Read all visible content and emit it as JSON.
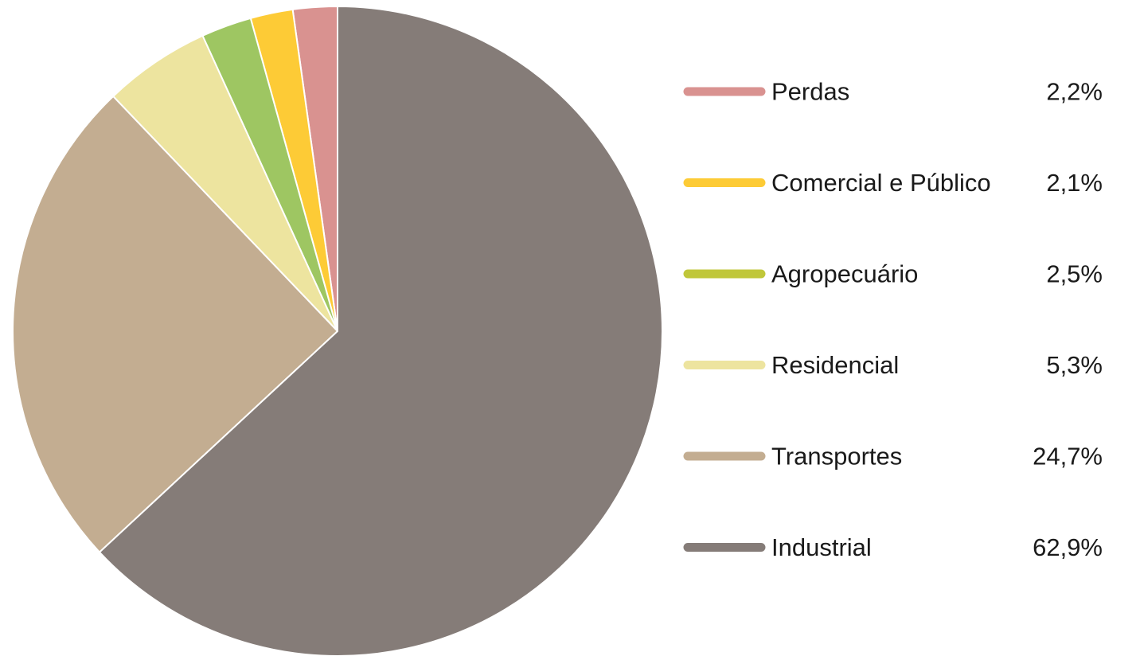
{
  "chart_data": {
    "type": "pie",
    "title": "",
    "unit": "%",
    "legend_position": "right",
    "slices": [
      {
        "label": "Perdas",
        "value": 2.2,
        "value_label": "2,2%",
        "color": "#d99290",
        "legend_color": "#d99290"
      },
      {
        "label": "Comercial e Público",
        "value": 2.1,
        "value_label": "2,1%",
        "color": "#fdcb36",
        "legend_color": "#fdcb36"
      },
      {
        "label": "Agropecuário",
        "value": 2.5,
        "value_label": "2,5%",
        "color": "#9ec662",
        "legend_color": "#c0c73a"
      },
      {
        "label": "Residencial",
        "value": 5.3,
        "value_label": "5,3%",
        "color": "#ede49f",
        "legend_color": "#ede49f"
      },
      {
        "label": "Transportes",
        "value": 24.7,
        "value_label": "24,7%",
        "color": "#c3ad91",
        "legend_color": "#c3ad91"
      },
      {
        "label": "Industrial",
        "value": 62.9,
        "value_label": "62,9%",
        "color": "#857c78",
        "legend_color": "#857c78"
      }
    ]
  }
}
